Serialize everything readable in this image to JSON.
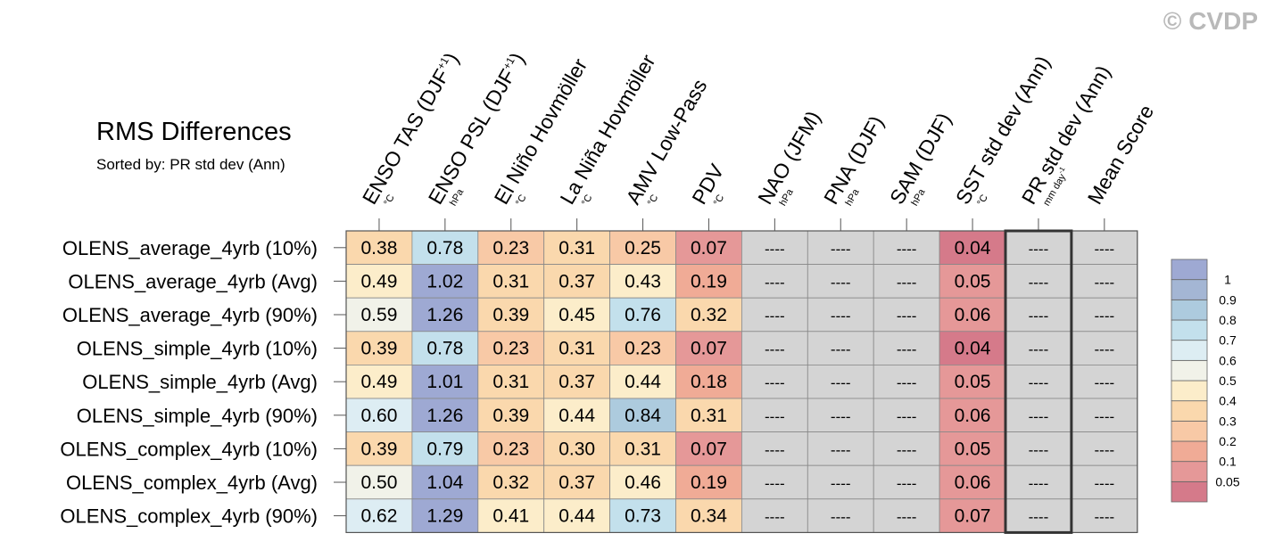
{
  "watermark": "© CVDP",
  "chart_data": {
    "type": "heatmap",
    "title": "RMS Differences",
    "subtitle": "Sorted by: PR std dev (Ann)",
    "missing_label": "----",
    "columns": [
      {
        "label": "ENSO TAS (DJF",
        "sup": "+1",
        "close": ")",
        "unit": "°C"
      },
      {
        "label": "ENSO PSL (DJF",
        "sup": "+1",
        "close": ")",
        "unit": "hPa"
      },
      {
        "label": "El Niño Hovmöller",
        "unit": "°C"
      },
      {
        "label": "La Niña Hovmöller",
        "unit": "°C"
      },
      {
        "label": "AMV Low-Pass",
        "unit": "°C"
      },
      {
        "label": "PDV",
        "unit": "°C"
      },
      {
        "label": "NAO (JFM)",
        "unit": "hPa"
      },
      {
        "label": "PNA (DJF)",
        "unit": "hPa"
      },
      {
        "label": "SAM (DJF)",
        "unit": "hPa"
      },
      {
        "label": "SST std dev (Ann)",
        "unit": "°C"
      },
      {
        "label": "PR std dev (Ann)",
        "unit": "mm day",
        "unit_sup": "-1"
      },
      {
        "label": "Mean Score",
        "unit": ""
      }
    ],
    "rows": [
      "OLENS_average_4yrb (10%)",
      "OLENS_average_4yrb (Avg)",
      "OLENS_average_4yrb (90%)",
      "OLENS_simple_4yrb (10%)",
      "OLENS_simple_4yrb (Avg)",
      "OLENS_simple_4yrb (90%)",
      "OLENS_complex_4yrb (10%)",
      "OLENS_complex_4yrb (Avg)",
      "OLENS_complex_4yrb (90%)"
    ],
    "values": [
      [
        "0.38",
        "0.78",
        "0.23",
        "0.31",
        "0.25",
        "0.07",
        null,
        null,
        null,
        "0.04",
        null,
        null
      ],
      [
        "0.49",
        "1.02",
        "0.31",
        "0.37",
        "0.43",
        "0.19",
        null,
        null,
        null,
        "0.05",
        null,
        null
      ],
      [
        "0.59",
        "1.26",
        "0.39",
        "0.45",
        "0.76",
        "0.32",
        null,
        null,
        null,
        "0.06",
        null,
        null
      ],
      [
        "0.39",
        "0.78",
        "0.23",
        "0.31",
        "0.23",
        "0.07",
        null,
        null,
        null,
        "0.04",
        null,
        null
      ],
      [
        "0.49",
        "1.01",
        "0.31",
        "0.37",
        "0.44",
        "0.18",
        null,
        null,
        null,
        "0.05",
        null,
        null
      ],
      [
        "0.60",
        "1.26",
        "0.39",
        "0.44",
        "0.84",
        "0.31",
        null,
        null,
        null,
        "0.06",
        null,
        null
      ],
      [
        "0.39",
        "0.79",
        "0.23",
        "0.30",
        "0.31",
        "0.07",
        null,
        null,
        null,
        "0.05",
        null,
        null
      ],
      [
        "0.50",
        "1.04",
        "0.32",
        "0.37",
        "0.46",
        "0.19",
        null,
        null,
        null,
        "0.06",
        null,
        null
      ],
      [
        "0.62",
        "1.29",
        "0.41",
        "0.44",
        "0.73",
        "0.34",
        null,
        null,
        null,
        "0.07",
        null,
        null
      ]
    ],
    "highlighted_column": "PR std dev (Ann)",
    "missing_color": "#d4d4d4",
    "colorbar": {
      "levels": [
        "0.05",
        "0.1",
        "0.2",
        "0.3",
        "0.4",
        "0.5",
        "0.6",
        "0.7",
        "0.8",
        "0.9",
        "1"
      ],
      "colors": [
        "#d57a8a",
        "#e59898",
        "#f0ab96",
        "#f8c9a6",
        "#fad8ad",
        "#fcedca",
        "#f1f2e9",
        "#ddedf3",
        "#c3e0ec",
        "#adcbde",
        "#a4b6d4",
        "#9ea9d3"
      ]
    }
  }
}
